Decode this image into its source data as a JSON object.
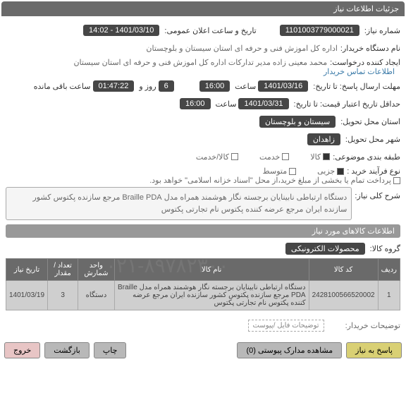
{
  "header": {
    "title": "جزئیات اطلاعات نیاز"
  },
  "fields": {
    "need_no_lbl": "شماره نیاز:",
    "need_no": "1101003779000021",
    "ann_date_lbl": "تاریخ و ساعت اعلان عمومی:",
    "ann_date": "1401/03/10 - 14:02",
    "buyer_name_lbl": "نام دستگاه خریدار:",
    "buyer_name": "اداره کل اموزش فنی و حرفه ای استان سیستان و بلوچستان",
    "requester_lbl": "ایجاد کننده درخواست:",
    "requester": "محمد معینی زاده مدیر تدارکات اداره کل اموزش فنی و حرفه ای استان سیستان",
    "contact_link": "اطلاعات تماس خریدار",
    "deadline_lbl": "مهلت ارسال پاسخ: تا تاریخ:",
    "deadline_date": "1401/03/16",
    "time_lbl": "ساعت",
    "deadline_time": "16:00",
    "days_val": "6",
    "days_lbl": "روز و",
    "remain_time": "01:47:22",
    "remain_lbl": "ساعت باقی مانده",
    "validity_lbl": "حداقل تاریخ اعتبار قیمت: تا تاریخ:",
    "validity_date": "1401/03/31",
    "validity_time": "16:00",
    "province_lbl": "استان محل تحویل:",
    "province": "سیستان و بلوچستان",
    "city_lbl": "شهر محل تحویل:",
    "city": "زاهدان",
    "budget_lbl": "طبقه بندی موضوعی:",
    "opt_goods": "کالا",
    "opt_service": "خدمت",
    "opt_both": "کالا/خدمت",
    "purchase_lbl": "نوع فرآیند خرید :",
    "opt_small": "جزیی",
    "opt_medium": "متوسط",
    "payment_note": "پرداخت تمام یا بخشی از مبلغ خرید،از محل \"اسناد خزانه اسلامی\" خواهد بود.",
    "desc_lbl": "شرح کلی نیاز:",
    "desc_text": "دستگاه ارتباطی نابینایان برجسته نگار هوشمند همراه مدل Braille PDA مرجع سازنده پکتوس کشور سازنده ایران مرجع عرضه کننده پکتوس نام تجارتی پکتوس",
    "items_header": "اطلاعات کالاهای مورد نیاز",
    "group_lbl": "گروه کالا:",
    "group_val": "محصولات الکترونیکی",
    "attach_lbl": "توضیحات خریدار:",
    "attach_val": "توضیحات فایل /پیوست"
  },
  "table": {
    "cols": [
      "ردیف",
      "کد کالا",
      "نام کالا",
      "واحد شمارش",
      "تعداد / مقدار",
      "تاریخ نیاز"
    ],
    "rows": [
      [
        "1",
        "2428100566520002",
        "دستگاه ارتباطی نابینایان برجسته نگار هوشمند همراه مدل Braille PDA مرجع سازنده پکتوس کشور سازنده ایران مرجع عرضه کننده پکتوس نام تجارتی پکتوس",
        "دستگاه",
        "3",
        "1401/03/19"
      ]
    ]
  },
  "buttons": {
    "reply": "پاسخ به نیاز",
    "attachments": "مشاهده مدارک پیوستی (0)",
    "print": "چاپ",
    "back": "بازگشت",
    "exit": "خروج"
  },
  "watermark": "۰۲۱-۸۹۷۸۲۳۰۰"
}
